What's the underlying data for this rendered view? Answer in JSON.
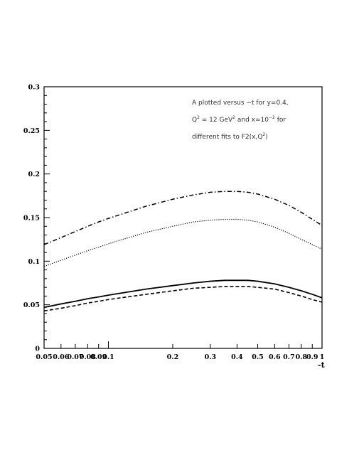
{
  "chart_data": {
    "type": "line",
    "title": "",
    "xlabel": "-t",
    "ylabel": "",
    "x_scale": "log",
    "xlim": [
      0.05,
      1
    ],
    "ylim": [
      0,
      0.3
    ],
    "grid": false,
    "x_ticks": [
      0.05,
      0.06,
      0.07,
      0.08,
      0.09,
      0.1,
      0.2,
      0.3,
      0.4,
      0.5,
      0.6,
      0.7,
      0.8,
      0.9,
      1
    ],
    "x_tick_labels": [
      "0.05",
      "0.06",
      "0.07",
      "0.08",
      "0.09",
      "0.1",
      "0.2",
      "0.3",
      "0.4",
      "0.5",
      "0.6",
      "0.7",
      "0.8",
      "0.9",
      "1"
    ],
    "y_ticks": [
      0,
      0.05,
      0.1,
      0.15,
      0.2,
      0.25,
      0.3
    ],
    "y_tick_labels": [
      "0",
      "0.05",
      "0.1",
      "0.15",
      "0.2",
      "0.25",
      "0.3"
    ],
    "annotation": {
      "line1": "A plotted versus −t for y=0.4,",
      "line2": {
        "pre": "Q",
        "sup1": "2",
        "mid": " = 12 GeV",
        "sup2": "2",
        "post": " and x=10",
        "sup3": "−2",
        "end": " for"
      },
      "line3": {
        "pre": "different fits to F2(x,Q",
        "sup": "2",
        "end": ")"
      }
    },
    "series": [
      {
        "style": "dashdot",
        "x": [
          0.05,
          0.06,
          0.07,
          0.08,
          0.09,
          0.1,
          0.15,
          0.2,
          0.25,
          0.3,
          0.35,
          0.4,
          0.45,
          0.5,
          0.6,
          0.7,
          0.8,
          0.9,
          1
        ],
        "y": [
          0.119,
          0.127,
          0.134,
          0.14,
          0.145,
          0.149,
          0.163,
          0.171,
          0.176,
          0.179,
          0.18,
          0.18,
          0.179,
          0.177,
          0.171,
          0.164,
          0.156,
          0.148,
          0.141
        ]
      },
      {
        "style": "dotted",
        "x": [
          0.05,
          0.06,
          0.07,
          0.08,
          0.09,
          0.1,
          0.15,
          0.2,
          0.25,
          0.3,
          0.35,
          0.4,
          0.45,
          0.5,
          0.6,
          0.7,
          0.8,
          0.9,
          1
        ],
        "y": [
          0.094,
          0.101,
          0.107,
          0.112,
          0.116,
          0.12,
          0.133,
          0.14,
          0.145,
          0.147,
          0.148,
          0.148,
          0.147,
          0.145,
          0.139,
          0.132,
          0.125,
          0.119,
          0.114
        ]
      },
      {
        "style": "solid",
        "x": [
          0.05,
          0.06,
          0.07,
          0.08,
          0.09,
          0.1,
          0.15,
          0.2,
          0.25,
          0.3,
          0.35,
          0.4,
          0.45,
          0.5,
          0.6,
          0.7,
          0.8,
          0.9,
          1
        ],
        "y": [
          0.047,
          0.051,
          0.054,
          0.057,
          0.059,
          0.061,
          0.068,
          0.072,
          0.075,
          0.077,
          0.078,
          0.078,
          0.078,
          0.077,
          0.074,
          0.07,
          0.066,
          0.062,
          0.058
        ]
      },
      {
        "style": "dashed",
        "x": [
          0.05,
          0.06,
          0.07,
          0.08,
          0.09,
          0.1,
          0.15,
          0.2,
          0.25,
          0.3,
          0.35,
          0.4,
          0.45,
          0.5,
          0.6,
          0.7,
          0.8,
          0.9,
          1
        ],
        "y": [
          0.043,
          0.046,
          0.049,
          0.052,
          0.054,
          0.056,
          0.062,
          0.066,
          0.069,
          0.07,
          0.071,
          0.071,
          0.071,
          0.07,
          0.068,
          0.064,
          0.06,
          0.056,
          0.053
        ]
      }
    ]
  }
}
